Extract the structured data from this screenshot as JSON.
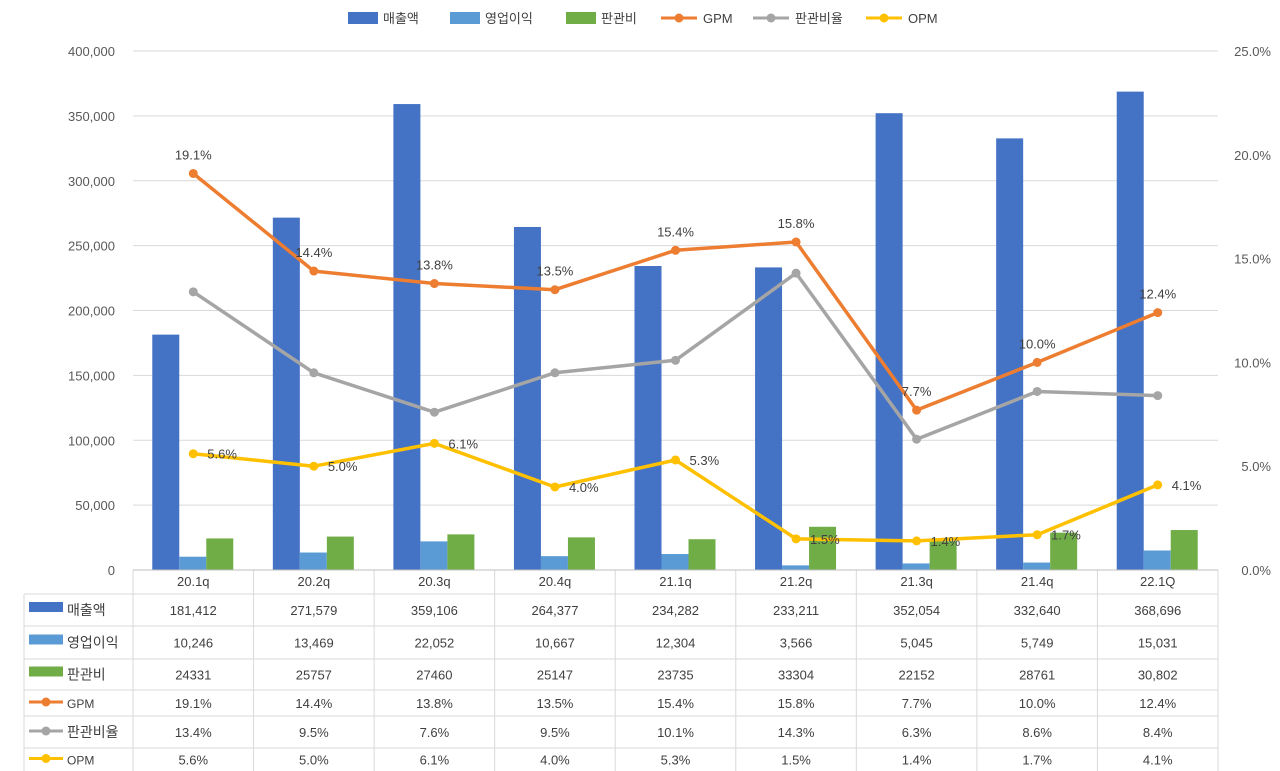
{
  "chart_data": {
    "type": "bar+line",
    "categories": [
      "20.1q",
      "20.2q",
      "20.3q",
      "20.4q",
      "21.1q",
      "21.2q",
      "21.3q",
      "21.4q",
      "22.1Q"
    ],
    "bar_series": [
      {
        "name": "매출액",
        "color": "#4472C4",
        "values": [
          181412,
          271579,
          359106,
          264377,
          234282,
          233211,
          352054,
          332640,
          368696
        ],
        "labels": [
          "181,412",
          "271,579",
          "359,106",
          "264,377",
          "234,282",
          "233,211",
          "352,054",
          "332,640",
          "368,696"
        ]
      },
      {
        "name": "영업이익",
        "color": "#5B9BD5",
        "values": [
          10246,
          13469,
          22052,
          10667,
          12304,
          3566,
          5045,
          5749,
          15031
        ],
        "labels": [
          "10,246",
          "13,469",
          "22,052",
          "10,667",
          "12,304",
          "3,566",
          "5,045",
          "5,749",
          "15,031"
        ]
      },
      {
        "name": "판관비",
        "color": "#70AD47",
        "values": [
          24331,
          25757,
          27460,
          25147,
          23735,
          33304,
          22152,
          28761,
          30802
        ],
        "labels": [
          "24331",
          "25757",
          "27460",
          "25147",
          "23735",
          "33304",
          "22152",
          "28761",
          "30,802"
        ]
      }
    ],
    "line_series": [
      {
        "name": "GPM",
        "color": "#ED7D31",
        "values": [
          19.1,
          14.4,
          13.8,
          13.5,
          15.4,
          15.8,
          7.7,
          10.0,
          12.4
        ],
        "labels": [
          "19.1%",
          "14.4%",
          "13.8%",
          "13.5%",
          "15.4%",
          "15.8%",
          "7.7%",
          "10.0%",
          "12.4%"
        ],
        "show_data_labels": true
      },
      {
        "name": "판관비율",
        "color": "#A5A5A5",
        "values": [
          13.4,
          9.5,
          7.6,
          9.5,
          10.1,
          14.3,
          6.3,
          8.6,
          8.4
        ],
        "labels": [
          "13.4%",
          "9.5%",
          "7.6%",
          "9.5%",
          "10.1%",
          "14.3%",
          "6.3%",
          "8.6%",
          "8.4%"
        ],
        "show_data_labels": false
      },
      {
        "name": "OPM",
        "color": "#FFC000",
        "values": [
          5.6,
          5.0,
          6.1,
          4.0,
          5.3,
          1.5,
          1.4,
          1.7,
          4.1
        ],
        "labels": [
          "5.6%",
          "5.0%",
          "6.1%",
          "4.0%",
          "5.3%",
          "1.5%",
          "1.4%",
          "1.7%",
          "4.1%"
        ],
        "show_data_labels": true
      }
    ],
    "y_left": {
      "min": 0,
      "max": 400000,
      "ticks": [
        "0",
        "50,000",
        "100,000",
        "150,000",
        "200,000",
        "250,000",
        "300,000",
        "350,000",
        "400,000"
      ]
    },
    "y_right": {
      "min": 0,
      "max": 25,
      "ticks": [
        "0.0%",
        "5.0%",
        "10.0%",
        "15.0%",
        "20.0%",
        "25.0%"
      ]
    },
    "legend_order": [
      "매출액",
      "영업이익",
      "판관비",
      "GPM",
      "판관비율",
      "OPM"
    ],
    "legend_position": "top",
    "data_table": true,
    "grid": true
  }
}
